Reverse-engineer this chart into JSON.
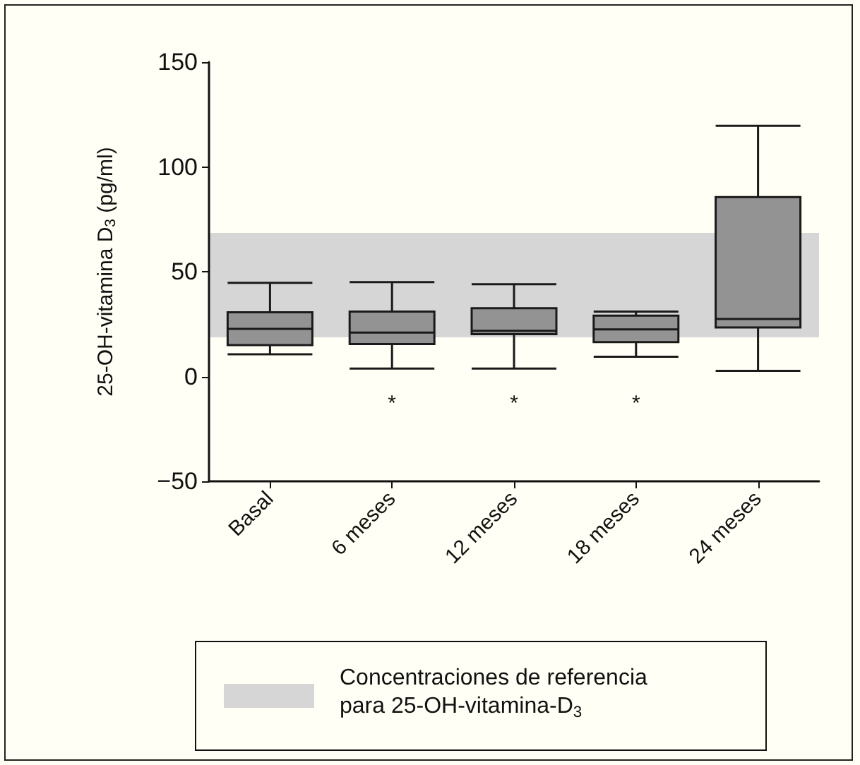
{
  "chart_data": {
    "type": "box",
    "ylabel": "25-OH-vitamina D$_{3}$ (pg/ml)",
    "categories": [
      "Basal",
      "6 meses",
      "12 meses",
      "18 meses",
      "24 meses"
    ],
    "series": [
      {
        "color": "#939393",
        "boxes": [
          {
            "low": 10.6,
            "q1": 15,
            "median": 22.7,
            "q3": 30.6,
            "high": 44.7
          },
          {
            "low": 3.8,
            "q1": 15.5,
            "median": 21,
            "q3": 31,
            "high": 45
          },
          {
            "low": 3.8,
            "q1": 20.2,
            "median": 21.8,
            "q3": 32.6,
            "high": 44
          },
          {
            "low": 9.4,
            "q1": 16.4,
            "median": 22.5,
            "q3": 29,
            "high": 31
          },
          {
            "low": 2.7,
            "q1": 23.4,
            "median": 27.4,
            "q3": 85.6,
            "high": 119.6
          }
        ]
      }
    ],
    "ylim": [
      -50,
      150
    ],
    "yticks": [
      -50,
      0,
      50,
      100,
      150
    ],
    "grid": false,
    "legend": "bottom",
    "bands": [
      {
        "axis": "y",
        "from": 18.7,
        "to": 68.5,
        "label": "Concentraciones de referencia\npara 25-OH-vitamina-D$_{3}$",
        "color": "#d6d6d6"
      }
    ],
    "annotations": [
      "*",
      "*",
      "*"
    ]
  }
}
